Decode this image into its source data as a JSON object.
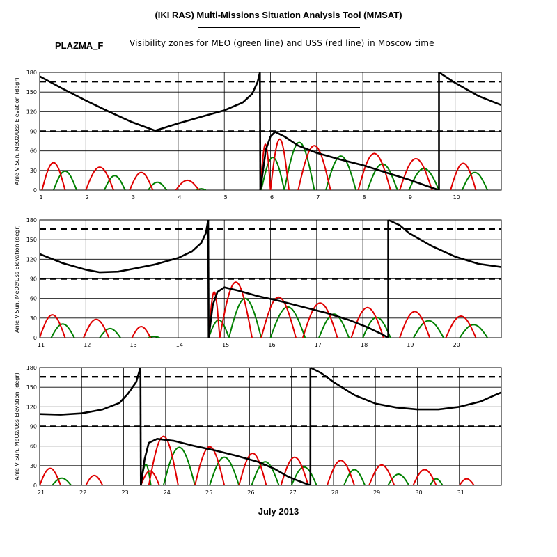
{
  "header": {
    "title": "(IKI RAS) Multi-Missions Situation Analysis Tool (MMSAT)",
    "object_name": "PLAZMA_F",
    "subtitle": "Visibility zones for MEO (green line) and USS (red line) in Moscow time"
  },
  "footer": {
    "xlabel": "July 2013"
  },
  "colors": {
    "sun_angle": "#000000",
    "meo": "#008000",
    "uss": "#e00000",
    "grid": "#000000"
  },
  "chart_data": [
    {
      "type": "line",
      "panel": 1,
      "ylabel": "Anle V Sun, MeOz/Uss Elevation (degr)",
      "xlim": [
        1,
        11
      ],
      "ylim": [
        0,
        180
      ],
      "x_ticks": [
        "1",
        "2",
        "3",
        "4",
        "5",
        "6",
        "7",
        "8",
        "9",
        "10"
      ],
      "y_ticks": [
        "0",
        "30",
        "60",
        "90",
        "120",
        "150",
        "180"
      ],
      "ref_lines": [
        90,
        166
      ],
      "grid": true,
      "sun_angle": [
        [
          [
            1.0,
            174
          ],
          [
            1.5,
            155
          ],
          [
            2.0,
            137
          ],
          [
            2.5,
            120
          ],
          [
            3.0,
            104
          ],
          [
            3.5,
            91
          ],
          [
            4.0,
            102
          ],
          [
            4.5,
            112
          ],
          [
            5.0,
            122
          ],
          [
            5.4,
            134
          ],
          [
            5.6,
            147
          ],
          [
            5.72,
            165
          ],
          [
            5.77,
            180
          ]
        ],
        [
          [
            5.77,
            180
          ],
          [
            5.78,
            0
          ]
        ],
        [
          [
            5.78,
            0
          ],
          [
            5.9,
            62
          ],
          [
            6.0,
            82
          ],
          [
            6.1,
            89
          ],
          [
            6.3,
            82
          ],
          [
            6.6,
            68
          ],
          [
            7.0,
            57
          ],
          [
            7.5,
            47
          ],
          [
            8.0,
            38
          ],
          [
            8.5,
            27
          ],
          [
            9.0,
            16
          ],
          [
            9.4,
            6
          ],
          [
            9.65,
            0
          ]
        ],
        [
          [
            9.65,
            0
          ],
          [
            9.65,
            180
          ]
        ],
        [
          [
            9.65,
            180
          ],
          [
            10.0,
            164
          ],
          [
            10.5,
            144
          ],
          [
            11.0,
            130
          ]
        ]
      ],
      "meo_passes": [
        {
          "start": 1.3,
          "end": 1.8,
          "peak": 29
        },
        {
          "start": 2.4,
          "end": 2.85,
          "peak": 22
        },
        {
          "start": 3.35,
          "end": 3.75,
          "peak": 12
        },
        {
          "start": 4.4,
          "end": 4.6,
          "peak": 2
        },
        {
          "start": 5.8,
          "end": 6.3,
          "peak": 50
        },
        {
          "start": 6.3,
          "end": 6.95,
          "peak": 73
        },
        {
          "start": 7.2,
          "end": 7.85,
          "peak": 52
        },
        {
          "start": 8.1,
          "end": 8.75,
          "peak": 40
        },
        {
          "start": 9.0,
          "end": 9.65,
          "peak": 33
        },
        {
          "start": 10.15,
          "end": 10.7,
          "peak": 27
        }
      ],
      "uss_passes": [
        {
          "start": 1.05,
          "end": 1.55,
          "peak": 42
        },
        {
          "start": 2.0,
          "end": 2.6,
          "peak": 35
        },
        {
          "start": 2.95,
          "end": 3.45,
          "peak": 27
        },
        {
          "start": 3.95,
          "end": 4.45,
          "peak": 15
        },
        {
          "start": 5.78,
          "end": 6.0,
          "peak": 70
        },
        {
          "start": 6.0,
          "end": 6.4,
          "peak": 78
        },
        {
          "start": 6.6,
          "end": 7.3,
          "peak": 68
        },
        {
          "start": 7.9,
          "end": 8.6,
          "peak": 56
        },
        {
          "start": 8.8,
          "end": 9.5,
          "peak": 48
        },
        {
          "start": 9.9,
          "end": 10.45,
          "peak": 41
        }
      ]
    },
    {
      "type": "line",
      "panel": 2,
      "ylabel": "Anle V Sun, MeOz/Uss Elevation (degr)",
      "xlim": [
        11,
        21
      ],
      "ylim": [
        0,
        180
      ],
      "x_ticks": [
        "11",
        "12",
        "13",
        "14",
        "15",
        "16",
        "17",
        "18",
        "19",
        "20"
      ],
      "y_ticks": [
        "0",
        "30",
        "60",
        "90",
        "120",
        "150",
        "180"
      ],
      "ref_lines": [
        90,
        166
      ],
      "grid": true,
      "sun_angle": [
        [
          [
            11.0,
            128
          ],
          [
            11.5,
            114
          ],
          [
            12.0,
            104
          ],
          [
            12.3,
            100
          ],
          [
            12.7,
            101
          ],
          [
            13.0,
            105
          ],
          [
            13.5,
            112
          ],
          [
            14.0,
            122
          ],
          [
            14.3,
            132
          ],
          [
            14.5,
            145
          ],
          [
            14.6,
            160
          ],
          [
            14.65,
            180
          ]
        ],
        [
          [
            14.65,
            180
          ],
          [
            14.66,
            0
          ]
        ],
        [
          [
            14.66,
            0
          ],
          [
            14.75,
            50
          ],
          [
            14.85,
            70
          ],
          [
            15.0,
            77
          ],
          [
            15.3,
            72
          ],
          [
            15.7,
            64
          ],
          [
            16.2,
            56
          ],
          [
            16.7,
            47
          ],
          [
            17.2,
            38
          ],
          [
            17.7,
            27
          ],
          [
            18.1,
            16
          ],
          [
            18.4,
            6
          ],
          [
            18.55,
            0
          ]
        ],
        [
          [
            18.55,
            0
          ],
          [
            18.55,
            180
          ]
        ],
        [
          [
            18.55,
            180
          ],
          [
            18.8,
            172
          ],
          [
            19.0,
            160
          ],
          [
            19.5,
            140
          ],
          [
            20.0,
            124
          ],
          [
            20.5,
            113
          ],
          [
            21.0,
            108
          ]
        ]
      ],
      "meo_passes": [
        {
          "start": 11.25,
          "end": 11.75,
          "peak": 21
        },
        {
          "start": 12.3,
          "end": 12.75,
          "peak": 14
        },
        {
          "start": 13.35,
          "end": 13.6,
          "peak": 2
        },
        {
          "start": 14.66,
          "end": 15.1,
          "peak": 27
        },
        {
          "start": 15.1,
          "end": 15.8,
          "peak": 60
        },
        {
          "start": 16.0,
          "end": 16.75,
          "peak": 47
        },
        {
          "start": 17.05,
          "end": 17.7,
          "peak": 36
        },
        {
          "start": 18.0,
          "end": 18.6,
          "peak": 31
        },
        {
          "start": 19.1,
          "end": 19.75,
          "peak": 26
        },
        {
          "start": 20.1,
          "end": 20.7,
          "peak": 20
        }
      ],
      "uss_passes": [
        {
          "start": 11.0,
          "end": 11.55,
          "peak": 35
        },
        {
          "start": 11.95,
          "end": 12.5,
          "peak": 28
        },
        {
          "start": 13.0,
          "end": 13.4,
          "peak": 17
        },
        {
          "start": 14.66,
          "end": 14.9,
          "peak": 70
        },
        {
          "start": 14.9,
          "end": 15.6,
          "peak": 85
        },
        {
          "start": 15.8,
          "end": 16.55,
          "peak": 62
        },
        {
          "start": 16.7,
          "end": 17.45,
          "peak": 53
        },
        {
          "start": 17.75,
          "end": 18.45,
          "peak": 46
        },
        {
          "start": 18.8,
          "end": 19.45,
          "peak": 40
        },
        {
          "start": 19.8,
          "end": 20.45,
          "peak": 33
        }
      ]
    },
    {
      "type": "line",
      "panel": 3,
      "ylabel": "Anle V Sun, MeOz/Uss Elevation (degr)",
      "xlim": [
        21,
        32
      ],
      "ylim": [
        0,
        180
      ],
      "x_ticks": [
        "21",
        "22",
        "23",
        "24",
        "25",
        "26",
        "27",
        "28",
        "29",
        "30",
        "31"
      ],
      "y_ticks": [
        "0",
        "30",
        "60",
        "90",
        "120",
        "150",
        "180"
      ],
      "ref_lines": [
        90,
        166
      ],
      "grid": true,
      "sun_angle": [
        [
          [
            21.0,
            109
          ],
          [
            21.5,
            108
          ],
          [
            22.0,
            110
          ],
          [
            22.5,
            116
          ],
          [
            22.9,
            126
          ],
          [
            23.1,
            140
          ],
          [
            23.3,
            158
          ],
          [
            23.4,
            180
          ]
        ],
        [
          [
            23.4,
            180
          ],
          [
            23.41,
            0
          ]
        ],
        [
          [
            23.41,
            0
          ],
          [
            23.5,
            40
          ],
          [
            23.6,
            65
          ],
          [
            23.8,
            71
          ],
          [
            24.2,
            68
          ],
          [
            24.7,
            60
          ],
          [
            25.2,
            53
          ],
          [
            25.7,
            45
          ],
          [
            26.2,
            36
          ],
          [
            26.6,
            25
          ],
          [
            26.9,
            14
          ],
          [
            27.2,
            6
          ],
          [
            27.45,
            0
          ]
        ],
        [
          [
            27.45,
            0
          ],
          [
            27.45,
            180
          ]
        ],
        [
          [
            27.45,
            180
          ],
          [
            27.7,
            172
          ],
          [
            28.0,
            158
          ],
          [
            28.5,
            138
          ],
          [
            29.0,
            125
          ],
          [
            29.5,
            119
          ],
          [
            30.0,
            116
          ],
          [
            30.5,
            116
          ],
          [
            31.0,
            120
          ],
          [
            31.5,
            128
          ],
          [
            31.85,
            138
          ],
          [
            32.0,
            142
          ]
        ]
      ],
      "meo_passes": [
        {
          "start": 21.3,
          "end": 21.75,
          "peak": 11
        },
        {
          "start": 23.41,
          "end": 23.65,
          "peak": 32
        },
        {
          "start": 23.95,
          "end": 24.7,
          "peak": 58
        },
        {
          "start": 25.05,
          "end": 25.75,
          "peak": 43
        },
        {
          "start": 26.05,
          "end": 26.7,
          "peak": 36
        },
        {
          "start": 27.0,
          "end": 27.6,
          "peak": 28
        },
        {
          "start": 28.25,
          "end": 28.75,
          "peak": 24
        },
        {
          "start": 29.3,
          "end": 29.8,
          "peak": 17
        },
        {
          "start": 30.3,
          "end": 30.6,
          "peak": 10
        }
      ],
      "uss_passes": [
        {
          "start": 21.0,
          "end": 21.5,
          "peak": 26
        },
        {
          "start": 22.1,
          "end": 22.5,
          "peak": 15
        },
        {
          "start": 23.41,
          "end": 23.85,
          "peak": 22
        },
        {
          "start": 23.6,
          "end": 24.3,
          "peak": 75
        },
        {
          "start": 24.7,
          "end": 25.4,
          "peak": 59
        },
        {
          "start": 25.75,
          "end": 26.4,
          "peak": 49
        },
        {
          "start": 26.75,
          "end": 27.4,
          "peak": 43
        },
        {
          "start": 27.85,
          "end": 28.5,
          "peak": 38
        },
        {
          "start": 28.85,
          "end": 29.45,
          "peak": 31
        },
        {
          "start": 29.9,
          "end": 30.45,
          "peak": 24
        },
        {
          "start": 31.0,
          "end": 31.35,
          "peak": 10
        }
      ]
    }
  ]
}
